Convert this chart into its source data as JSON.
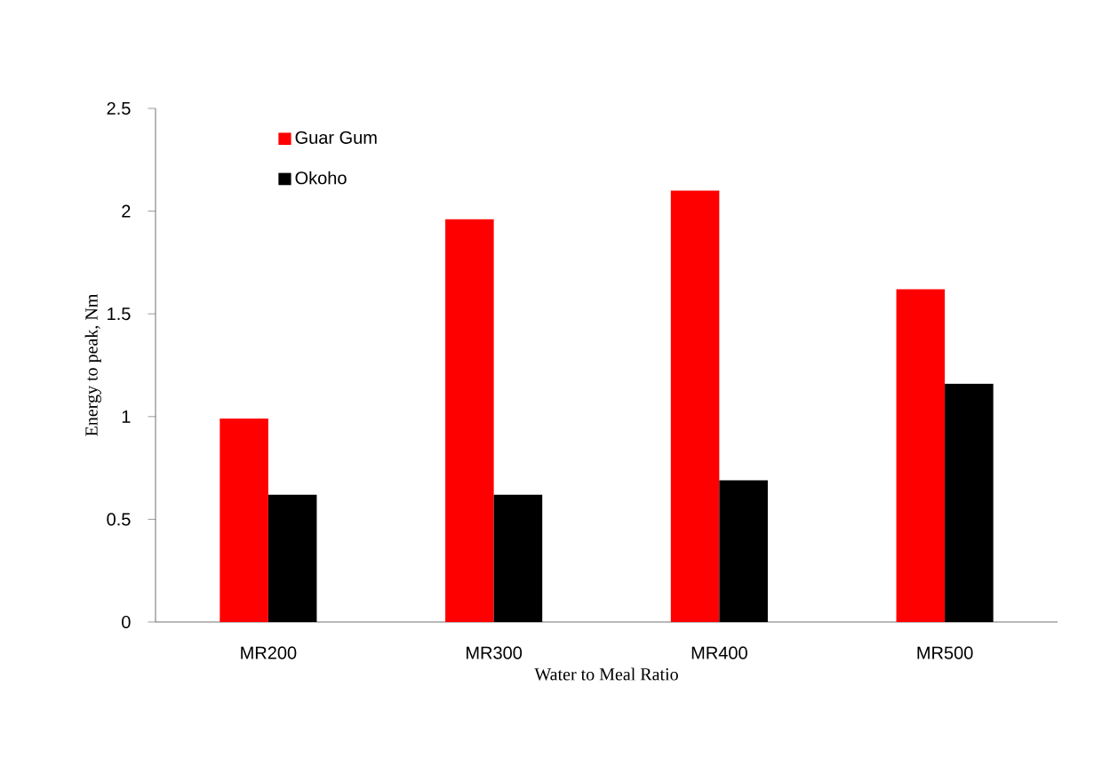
{
  "chart_data": {
    "type": "bar",
    "xlabel": "Water to Meal Ratio",
    "ylabel": "Energy  to peak, Nm",
    "categories": [
      "MR200",
      "MR300",
      "MR400",
      "MR500"
    ],
    "series": [
      {
        "name": "Guar Gum",
        "color": "#ff0000",
        "values": [
          0.99,
          1.96,
          2.1,
          1.62
        ]
      },
      {
        "name": "Okoho",
        "color": "#000000",
        "values": [
          0.62,
          0.62,
          0.69,
          1.16
        ]
      }
    ],
    "ylim": [
      0,
      2.5
    ],
    "yticks": [
      0,
      0.5,
      1,
      1.5,
      2,
      2.5
    ],
    "legend": "top left",
    "grid": false
  }
}
